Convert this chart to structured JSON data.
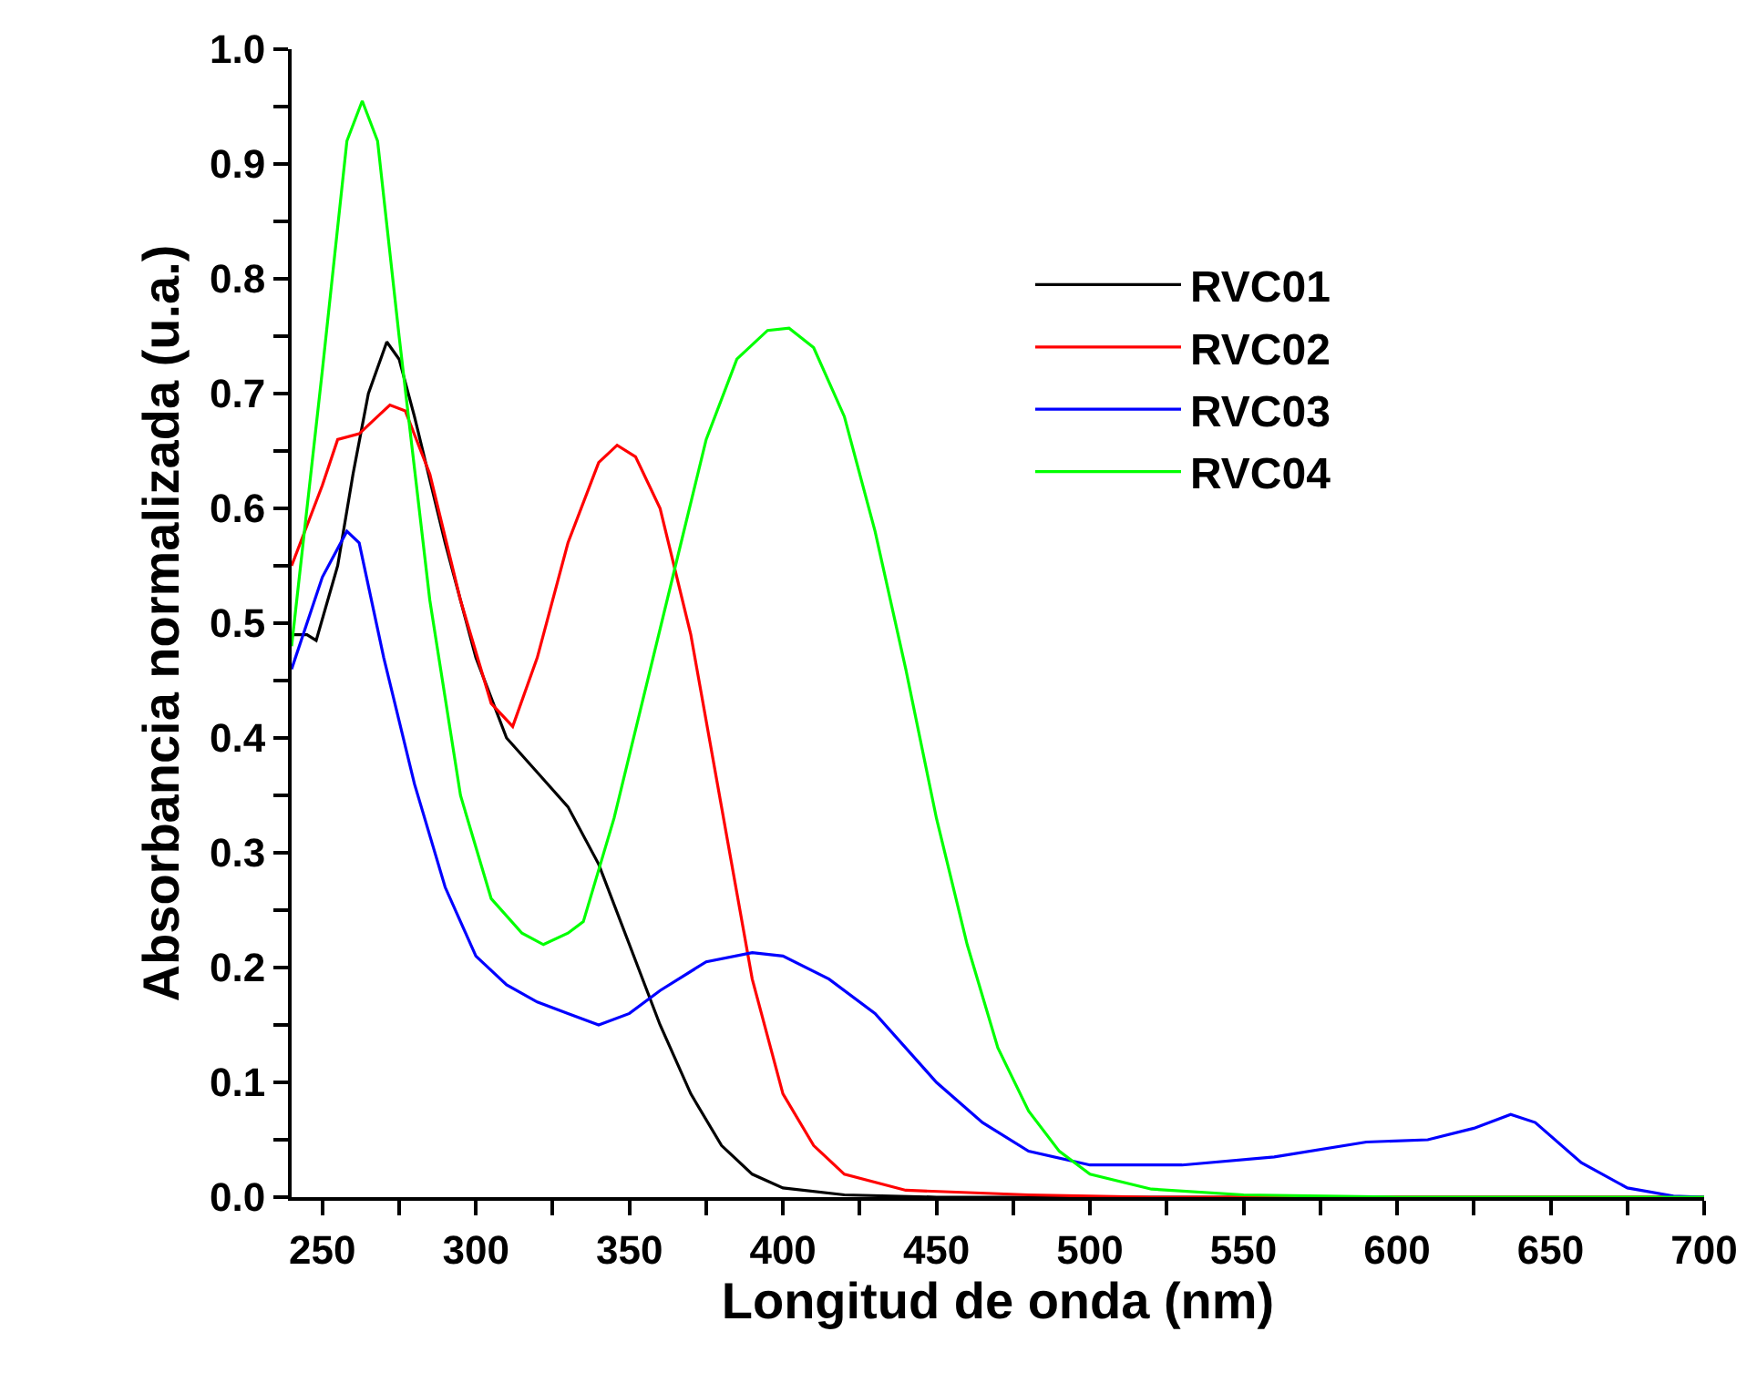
{
  "chart_data": {
    "type": "line",
    "xlabel": "Longitud de onda (nm)",
    "ylabel": "Absorbancia normalizada (u.a.)",
    "xlim": [
      240,
      700
    ],
    "ylim": [
      0,
      1.0
    ],
    "xticks": [
      250,
      {
        "value": 275,
        "label": null
      },
      300,
      {
        "value": 325,
        "label": null
      },
      350,
      {
        "value": 375,
        "label": null
      },
      400,
      {
        "value": 425,
        "label": null
      },
      450,
      {
        "value": 475,
        "label": null
      },
      500,
      {
        "value": 525,
        "label": null
      },
      550,
      {
        "value": 575,
        "label": null
      },
      600,
      {
        "value": 625,
        "label": null
      },
      650,
      {
        "value": 675,
        "label": null
      },
      700
    ],
    "yticks": [
      {
        "value": 0,
        "label": "0.0"
      },
      {
        "value": 0.05,
        "label": null
      },
      0.1,
      {
        "value": 0.15,
        "label": null
      },
      0.2,
      {
        "value": 0.25,
        "label": null
      },
      0.3,
      {
        "value": 0.35,
        "label": null
      },
      0.4,
      {
        "value": 0.45,
        "label": null
      },
      0.5,
      {
        "value": 0.55,
        "label": null
      },
      0.6,
      {
        "value": 0.65,
        "label": null
      },
      0.7,
      {
        "value": 0.75,
        "label": null
      },
      0.8,
      {
        "value": 0.85,
        "label": null
      },
      0.9,
      {
        "value": 0.95,
        "label": null
      },
      {
        "value": 1.0,
        "label": "1.0"
      }
    ],
    "legend": "top right",
    "marker": "none",
    "line_style": "solid",
    "series": [
      {
        "name": "RVC01",
        "color": "#000000",
        "x": [
          240,
          245,
          248,
          255,
          260,
          265,
          271,
          275,
          280,
          290,
          300,
          310,
          320,
          330,
          340,
          350,
          360,
          370,
          380,
          390,
          400,
          420,
          450,
          700
        ],
        "values": [
          0.49,
          0.49,
          0.485,
          0.55,
          0.63,
          0.7,
          0.745,
          0.73,
          0.68,
          0.57,
          0.47,
          0.4,
          0.37,
          0.34,
          0.29,
          0.22,
          0.15,
          0.09,
          0.045,
          0.02,
          0.008,
          0.002,
          0,
          0
        ]
      },
      {
        "name": "RVC02",
        "color": "#ff0000",
        "x": [
          240,
          250,
          255,
          262,
          268,
          272,
          277,
          285,
          295,
          305,
          312,
          320,
          330,
          340,
          346,
          352,
          360,
          370,
          380,
          390,
          400,
          410,
          420,
          440,
          480,
          520,
          700
        ],
        "values": [
          0.55,
          0.62,
          0.66,
          0.665,
          0.68,
          0.69,
          0.685,
          0.63,
          0.52,
          0.43,
          0.41,
          0.47,
          0.57,
          0.64,
          0.655,
          0.645,
          0.6,
          0.49,
          0.34,
          0.19,
          0.09,
          0.045,
          0.02,
          0.006,
          0.002,
          0,
          0
        ]
      },
      {
        "name": "RVC03",
        "color": "#0000ff",
        "x": [
          240,
          245,
          250,
          258,
          262,
          270,
          280,
          290,
          300,
          310,
          320,
          330,
          340,
          350,
          360,
          375,
          390,
          400,
          415,
          430,
          450,
          465,
          480,
          500,
          530,
          560,
          590,
          610,
          625,
          637,
          645,
          660,
          675,
          690,
          700
        ],
        "values": [
          0.46,
          0.5,
          0.54,
          0.58,
          0.57,
          0.47,
          0.36,
          0.27,
          0.21,
          0.185,
          0.17,
          0.16,
          0.15,
          0.16,
          0.18,
          0.205,
          0.213,
          0.21,
          0.19,
          0.16,
          0.1,
          0.065,
          0.04,
          0.028,
          0.028,
          0.035,
          0.048,
          0.05,
          0.06,
          0.072,
          0.065,
          0.03,
          0.008,
          0.001,
          0
        ]
      },
      {
        "name": "RVC04",
        "color": "#00ff00",
        "x": [
          240,
          250,
          258,
          263,
          268,
          275,
          285,
          295,
          305,
          315,
          322,
          330,
          335,
          345,
          355,
          365,
          375,
          385,
          395,
          402,
          410,
          420,
          430,
          440,
          450,
          460,
          470,
          480,
          490,
          500,
          520,
          550,
          600,
          700
        ],
        "values": [
          0.48,
          0.72,
          0.92,
          0.955,
          0.92,
          0.75,
          0.52,
          0.35,
          0.26,
          0.23,
          0.22,
          0.23,
          0.24,
          0.33,
          0.44,
          0.55,
          0.66,
          0.73,
          0.755,
          0.757,
          0.74,
          0.68,
          0.58,
          0.46,
          0.33,
          0.22,
          0.13,
          0.075,
          0.04,
          0.02,
          0.007,
          0.002,
          0,
          0
        ]
      }
    ]
  }
}
